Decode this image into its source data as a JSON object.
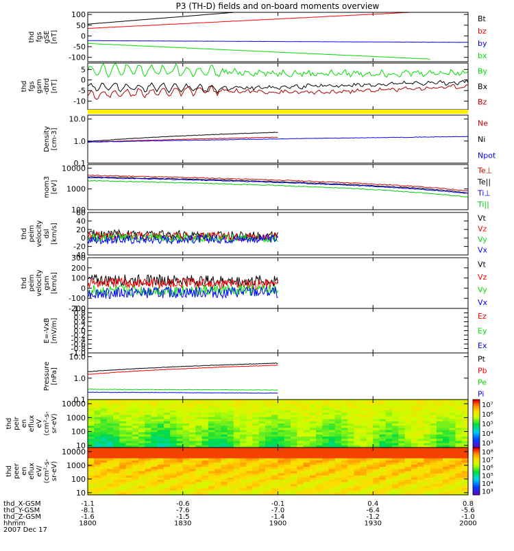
{
  "title": "P3 (TH-D) fields and on-board moments overview",
  "ephemeris": {
    "rows": [
      {
        "label": "thd_X-GSM",
        "values": [
          "-1.1",
          "-0.6",
          "-0.1",
          "0.4",
          "0.8"
        ]
      },
      {
        "label": "thd_Y-GSM",
        "values": [
          "-8.1",
          "-7.6",
          "-7.0",
          "-6.4",
          "-5.6"
        ]
      },
      {
        "label": "thd_Z-GSM",
        "values": [
          "-1.6",
          "-1.5",
          "-1.4",
          "-1.2",
          "-1.0"
        ]
      },
      {
        "label": "hhmm",
        "values": [
          "1800",
          "1830",
          "1900",
          "1930",
          "2000"
        ]
      }
    ],
    "date": "2007 Dec 17"
  },
  "chart_data": [
    {
      "type": "line",
      "id": "fgs_gse",
      "ylabel_lines": [
        "thd",
        "fgs",
        "gSE",
        "[nT]"
      ],
      "ylim": [
        -120,
        110
      ],
      "ticks": [
        "100",
        "50",
        "0",
        "-50",
        "-100"
      ],
      "tick_values": [
        100,
        50,
        0,
        -50,
        -100
      ],
      "series": [
        {
          "name": "Bt",
          "color": "#000000",
          "values": [
            [
              0,
              55
            ],
            [
              0.4,
              112
            ]
          ]
        },
        {
          "name": "bz",
          "color": "#ff0000",
          "values": [
            [
              0,
              35
            ],
            [
              0.85,
              110
            ]
          ]
        },
        {
          "name": "by",
          "color": "#0000ff",
          "values": [
            [
              0,
              -22
            ],
            [
              1,
              -30
            ]
          ]
        },
        {
          "name": "bx",
          "color": "#00dd00",
          "values": [
            [
              0,
              -35
            ],
            [
              0.9,
              -108
            ]
          ]
        }
      ]
    },
    {
      "type": "line",
      "id": "fgs_gsm_detrend",
      "ylabel_lines": [
        "thd",
        "fgs",
        "gsm",
        "-dtrd",
        "[nT]"
      ],
      "ylim": [
        -14,
        8
      ],
      "ticks": [
        "5",
        "0",
        "-5",
        "-10"
      ],
      "tick_values": [
        5,
        0,
        -5,
        -10
      ],
      "series": [
        {
          "name": "By",
          "color": "#00dd00",
          "values": [
            [
              0,
              5
            ],
            [
              0.3,
              4
            ],
            [
              0.6,
              3
            ],
            [
              1,
              3.5
            ]
          ]
        },
        {
          "name": "Bx",
          "color": "#000000",
          "values": [
            [
              0,
              -3
            ],
            [
              0.3,
              -4
            ],
            [
              0.6,
              -3
            ],
            [
              1,
              -1
            ]
          ]
        },
        {
          "name": "Bz",
          "color": "#aa0000",
          "values": [
            [
              0,
              -7
            ],
            [
              0.3,
              -5
            ],
            [
              0.6,
              -6
            ],
            [
              1,
              -3
            ]
          ]
        }
      ]
    },
    {
      "type": "line",
      "id": "density",
      "scale": "log",
      "ylabel_lines": [
        "Density",
        "[cm-3]"
      ],
      "ylim": [
        0.1,
        15
      ],
      "ticks": [
        "10.0",
        "1.0",
        "0.1"
      ],
      "tick_values": [
        10,
        1,
        0.1
      ],
      "series": [
        {
          "name": "Ne",
          "color": "#cc0000",
          "values": [
            [
              0,
              0.9
            ],
            [
              0.5,
              1.5
            ]
          ]
        },
        {
          "name": "Ni",
          "color": "#000000",
          "values": [
            [
              0,
              0.95
            ],
            [
              0.5,
              2.5
            ]
          ]
        },
        {
          "name": "Npot",
          "color": "#0000ff",
          "values": [
            [
              0,
              0.9
            ],
            [
              1,
              1.6
            ]
          ]
        }
      ]
    },
    {
      "type": "line",
      "id": "temperature",
      "scale": "log",
      "ylabel_lines": [
        "mom3",
        "[eV]"
      ],
      "ylim": [
        100,
        15000
      ],
      "ticks": [
        "10000",
        "1000",
        "100"
      ],
      "tick_values": [
        10000,
        1000,
        100
      ],
      "series": [
        {
          "name": "Te⊥",
          "color": "#cc0000",
          "values": [
            [
              0,
              4500
            ],
            [
              1,
              800
            ]
          ]
        },
        {
          "name": "Te||",
          "color": "#000000",
          "values": [
            [
              0,
              3800
            ],
            [
              1,
              650
            ]
          ]
        },
        {
          "name": "Ti⊥",
          "color": "#0000ff",
          "values": [
            [
              0,
              3500
            ],
            [
              1,
              600
            ]
          ]
        },
        {
          "name": "Ti||",
          "color": "#00cc00",
          "values": [
            [
              0,
              2500
            ],
            [
              1,
              400
            ]
          ]
        }
      ]
    },
    {
      "type": "line",
      "id": "velocity_perp_dsl",
      "ylabel_lines": [
        "thd",
        "peim",
        "velocity",
        "dsl",
        "[km/s]"
      ],
      "ylim": [
        -40,
        60
      ],
      "ticks": [
        "60",
        "40",
        "20",
        "0",
        "-20",
        "-40"
      ],
      "tick_values": [
        60,
        40,
        20,
        0,
        -20,
        -40
      ],
      "series": [
        {
          "name": "Vt",
          "color": "#000000",
          "values": [
            [
              0,
              10
            ],
            [
              0.5,
              5
            ]
          ]
        },
        {
          "name": "Vz",
          "color": "#ff0000",
          "values": [
            [
              0,
              5
            ],
            [
              0.5,
              3
            ]
          ]
        },
        {
          "name": "Vy",
          "color": "#00dd00",
          "values": [
            [
              0,
              0
            ],
            [
              0.5,
              0
            ]
          ]
        },
        {
          "name": "Vx",
          "color": "#0000ff",
          "values": [
            [
              0,
              -5
            ],
            [
              0.5,
              -2
            ]
          ]
        }
      ]
    },
    {
      "type": "line",
      "id": "velocity_gsm",
      "ylabel_lines": [
        "thd",
        "peim",
        "velocity",
        "gsm",
        "[km/s]"
      ],
      "ylim": [
        -200,
        300
      ],
      "ticks": [
        "300",
        "200",
        "100",
        "0",
        "-100",
        "-200"
      ],
      "tick_values": [
        300,
        200,
        100,
        0,
        -100,
        -200
      ],
      "series": [
        {
          "name": "Vt",
          "color": "#000000",
          "values": [
            [
              0,
              80
            ],
            [
              0.5,
              70
            ]
          ]
        },
        {
          "name": "Vz",
          "color": "#ff0000",
          "values": [
            [
              0,
              50
            ],
            [
              0.5,
              40
            ]
          ]
        },
        {
          "name": "Vy",
          "color": "#00dd00",
          "values": [
            [
              0,
              -30
            ],
            [
              0.5,
              -20
            ]
          ]
        },
        {
          "name": "Vx",
          "color": "#0000ff",
          "values": [
            [
              0,
              -50
            ],
            [
              0.5,
              -40
            ]
          ]
        }
      ]
    },
    {
      "type": "line",
      "id": "efield",
      "ylabel_lines": [
        "E=-VxB",
        "[mV/m]"
      ],
      "ylim": [
        -1,
        1
      ],
      "ticks": [
        "1.0",
        "0.8",
        "0.6",
        "0.4",
        "0.2",
        "0.0",
        "-0.2",
        "-0.4",
        "-0.6",
        "-0.8",
        "-1.0"
      ],
      "tick_values": [
        1,
        0.8,
        0.6,
        0.4,
        0.2,
        0,
        -0.2,
        -0.4,
        -0.6,
        -0.8,
        -1
      ],
      "series": [
        {
          "name": "Ez",
          "color": "#ff0000",
          "values": []
        },
        {
          "name": "Ey",
          "color": "#00dd00",
          "values": []
        },
        {
          "name": "Ex",
          "color": "#0000ff",
          "values": []
        }
      ]
    },
    {
      "type": "line",
      "id": "pressure",
      "scale": "log",
      "ylabel_lines": [
        "Pressure",
        "[nPa]"
      ],
      "ylim": [
        0.1,
        15
      ],
      "ticks": [
        "10.0",
        "1.0",
        "0.1"
      ],
      "tick_values": [
        10,
        1,
        0.1
      ],
      "series": [
        {
          "name": "Pt",
          "color": "#000000",
          "values": [
            [
              0,
              2
            ],
            [
              0.5,
              5
            ]
          ]
        },
        {
          "name": "Pb",
          "color": "#ff0000",
          "values": [
            [
              0,
              1.5
            ],
            [
              0.5,
              4
            ]
          ]
        },
        {
          "name": "Pe",
          "color": "#00dd00",
          "values": [
            [
              0,
              0.3
            ],
            [
              0.5,
              0.28
            ]
          ]
        },
        {
          "name": "Pi",
          "color": "#0000ff",
          "values": [
            [
              0,
              0.22
            ],
            [
              0.5,
              0.2
            ]
          ]
        }
      ]
    },
    {
      "type": "heatmap",
      "id": "ion_spectrogram",
      "scale": "log",
      "ylabel_lines": [
        "thd",
        "peir",
        "en",
        "eflux",
        "eV",
        "(cm²-s-",
        "sr-eV)"
      ],
      "ylim": [
        7,
        20000
      ],
      "ticks": [
        "10000",
        "1000",
        "100",
        "10"
      ],
      "tick_values": [
        10000,
        1000,
        100,
        10
      ],
      "colorbar": {
        "labels": [
          "10⁷",
          "10⁶",
          "10⁵",
          "10⁴",
          "10³"
        ],
        "exponents": [
          7,
          6,
          5,
          4,
          3
        ],
        "range": [
          2.5,
          7.5
        ]
      }
    },
    {
      "type": "heatmap",
      "id": "electron_spectrogram",
      "scale": "log",
      "ylabel_lines": [
        "thd",
        "peer",
        "en",
        "eflux",
        "eV/",
        "(cm²-s-",
        "sr-eV)"
      ],
      "ylim": [
        7,
        20000
      ],
      "ticks": [
        "10000",
        "1000",
        "100",
        "10"
      ],
      "tick_values": [
        10000,
        1000,
        100,
        10
      ],
      "colorbar": {
        "labels": [
          "10⁸",
          "10⁷",
          "10⁶",
          "10⁵",
          "10⁴",
          "10³"
        ],
        "exponents": [
          8,
          7,
          6,
          5,
          4,
          3
        ],
        "range": [
          2.5,
          8.5
        ]
      }
    }
  ]
}
